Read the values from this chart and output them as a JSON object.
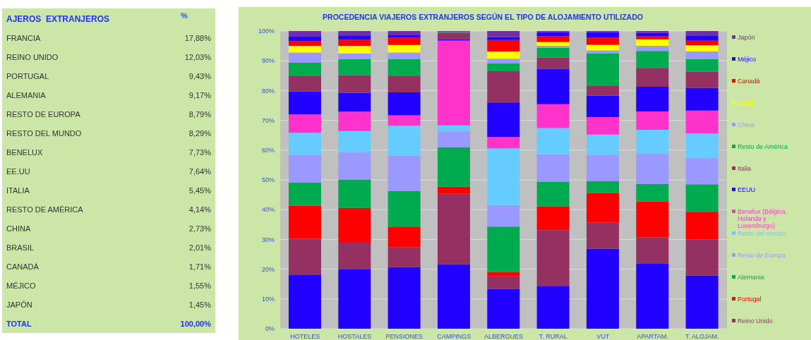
{
  "chart_data": [
    {
      "type": "other",
      "title": "AJEROS  EXTRANJEROS",
      "annotations": [
        "%"
      ],
      "categories": [
        "FRANCIA",
        "REINO UNIDO",
        "PORTUGAL",
        "ALEMANIA",
        "RESTO DE EUROPA",
        "RESTO DEL MUNDO",
        "BENELUX",
        "EE.UU",
        "ITALIA",
        "RESTO DE AMÉRICA",
        "CHINA",
        "BRASIL",
        "CANADÁ",
        "MÉJICO",
        "JAPÓN",
        "TOTAL"
      ],
      "value_labels": [
        "17,88%",
        "12,03%",
        "9,43%",
        "9,17%",
        "8,79%",
        "8,29%",
        "7,73%",
        "7,64%",
        "5,45%",
        "4,14%",
        "2,73%",
        "2,01%",
        "1,71%",
        "1,55%",
        "1,45%",
        "100,00%"
      ]
    },
    {
      "type": "bar",
      "stacked": true,
      "title": "PROCEDENCIA VIAJEROS EXTRANJEROS SEGÚN EL TIPO DE ALOJAMIENTO UTILIZADO",
      "categories": [
        "HOTELES",
        "HOSTALES",
        "PENSIONES",
        "CAMPINGS",
        "ALBERGUES",
        "T. RURAL",
        "VUT",
        "APARTAM.",
        "T. ALOJAM."
      ],
      "ylim": [
        0,
        100
      ],
      "yticks": [
        {
          "value": 0,
          "label": "0%"
        },
        {
          "value": 10,
          "label": "10%"
        },
        {
          "value": 20,
          "label": "20%"
        },
        {
          "value": 30,
          "label": "30%"
        },
        {
          "value": 40,
          "label": "40%"
        },
        {
          "value": 50,
          "label": "50%"
        },
        {
          "value": 60,
          "label": "60%"
        },
        {
          "value": 70,
          "label": "70%"
        },
        {
          "value": 80,
          "label": "80%"
        },
        {
          "value": 90,
          "label": "90%"
        },
        {
          "value": 100,
          "label": "100%"
        }
      ],
      "grid": "y",
      "legend": "right",
      "series": [
        {
          "color": "#2200ff",
          "values": [
            18.0,
            20.1,
            20.7,
            21.7,
            13.4,
            14.4,
            26.9,
            21.8,
            17.9
          ]
        },
        {
          "name": "Reino Unido",
          "color": "#953063",
          "values": [
            12.2,
            8.8,
            6.6,
            23.6,
            4.3,
            18.7,
            8.8,
            8.9,
            12.0
          ]
        },
        {
          "name": "Portugal",
          "color": "#ff0000",
          "values": [
            11.1,
            11.7,
            7.0,
            2.4,
            1.4,
            8.0,
            9.9,
            12.1,
            9.4
          ]
        },
        {
          "name": "Alemania",
          "color": "#00aa4f",
          "values": [
            7.8,
            9.5,
            11.9,
            13.2,
            15.2,
            8.3,
            3.9,
            5.8,
            9.2
          ]
        },
        {
          "name": "Resto de Europa",
          "color": "#9999ff",
          "values": [
            9.2,
            9.1,
            12.0,
            5.4,
            7.2,
            9.2,
            8.8,
            10.1,
            8.8
          ]
        },
        {
          "name": "Resto del mundo",
          "color": "#66ccff",
          "values": [
            7.5,
            7.2,
            10.0,
            2.0,
            19.1,
            8.8,
            6.9,
            8.1,
            8.3
          ]
        },
        {
          "name": "Benelux (Bélgica, Holanda y Luxemburgo)",
          "color": "#ff33cc",
          "values": [
            6.2,
            6.5,
            3.5,
            28.5,
            3.8,
            8.0,
            5.9,
            6.2,
            7.7
          ]
        },
        {
          "name": "EEUU",
          "color": "#2200ff",
          "values": [
            7.7,
            6.3,
            7.7,
            0.4,
            11.6,
            11.9,
            7.2,
            8.3,
            7.6
          ]
        },
        {
          "name": "Italia",
          "color": "#953063",
          "values": [
            5.3,
            6.0,
            5.6,
            2.2,
            10.5,
            3.8,
            3.4,
            6.3,
            5.5
          ]
        },
        {
          "name": "Resto de América",
          "color": "#00aa4f",
          "values": [
            4.4,
            5.4,
            5.5,
            0.2,
            2.6,
            3.2,
            10.8,
            5.7,
            4.1
          ]
        },
        {
          "name": "China",
          "color": "#9999ff",
          "values": [
            3.4,
            1.9,
            2.3,
            0,
            1.6,
            0.7,
            1.0,
            1.7,
            2.7
          ]
        },
        {
          "name": "Brasil",
          "color": "#ffff00",
          "values": [
            2.2,
            2.5,
            2.5,
            0,
            2.4,
            1.3,
            1.9,
            2.2,
            2.0
          ]
        },
        {
          "name": "Canadá",
          "color": "#ff0000",
          "values": [
            1.6,
            2.1,
            2.5,
            0.2,
            3.9,
            1.9,
            2.4,
            1.1,
            1.7
          ]
        },
        {
          "name": "Méjico",
          "color": "#2200ff",
          "values": [
            1.7,
            1.4,
            0.8,
            0,
            1.0,
            1.4,
            1.8,
            1.1,
            1.6
          ]
        },
        {
          "name": "Japón",
          "color": "#7030a0",
          "values": [
            1.7,
            1.5,
            1.4,
            0.2,
            2.0,
            0.4,
            0.4,
            0.6,
            1.5
          ]
        }
      ]
    }
  ]
}
